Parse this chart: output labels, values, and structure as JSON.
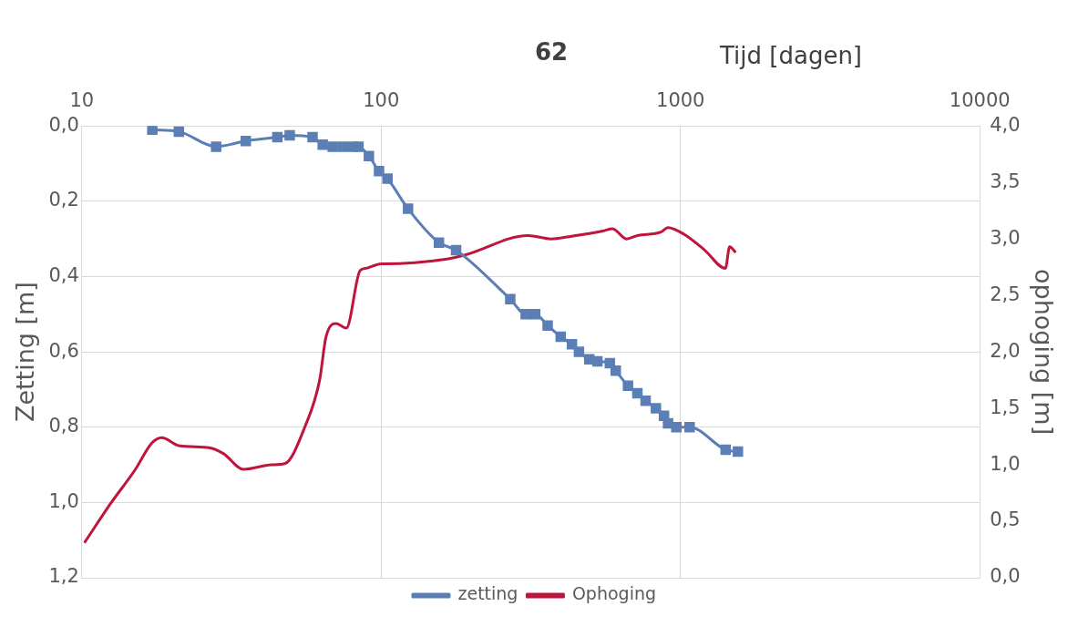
{
  "chart_data": {
    "type": "line",
    "title": "62",
    "xlabel": "Tijd [dagen]",
    "ylabel": "Zetting [m]",
    "y2label": "ophoging [m]",
    "log": "x",
    "xlim": [
      10,
      10000
    ],
    "xticks": [
      10,
      100,
      1000,
      10000
    ],
    "ylim": [
      1.2,
      0
    ],
    "yticks": [
      {
        "value": 0,
        "label": "0,0"
      },
      {
        "value": 0.2,
        "label": "0,2"
      },
      {
        "value": 0.4,
        "label": "0,4"
      },
      {
        "value": 0.6,
        "label": "0,6"
      },
      {
        "value": 0.8,
        "label": "0,8"
      },
      {
        "value": 1.0,
        "label": "1,0"
      },
      {
        "value": 1.2,
        "label": "1,2"
      }
    ],
    "y2lim": [
      0,
      4
    ],
    "y2ticks": [
      {
        "value": 0,
        "label": "0,0"
      },
      {
        "value": 0.5,
        "label": "0,5"
      },
      {
        "value": 1.0,
        "label": "1,0"
      },
      {
        "value": 1.5,
        "label": "1,5"
      },
      {
        "value": 2.0,
        "label": "2,0"
      },
      {
        "value": 2.5,
        "label": "2,5"
      },
      {
        "value": 3.0,
        "label": "3,0"
      },
      {
        "value": 3.5,
        "label": "3,5"
      },
      {
        "value": 4.0,
        "label": "4,0"
      }
    ],
    "grid": true,
    "legend": "bottom",
    "series": [
      {
        "name": "zetting",
        "color": "#5b7fb5",
        "marker": "square",
        "line_style": "solid",
        "x": [
          17.2,
          21.1,
          28.1,
          35.3,
          45,
          49.5,
          59,
          63.8,
          68.9,
          74.6,
          80.7,
          84,
          91,
          98.4,
          105,
          123,
          156,
          178,
          270,
          304,
          327,
          360,
          398,
          434,
          458,
          496,
          528,
          581,
          608,
          668,
          718,
          765,
          828,
          881,
          909,
          969,
          1073,
          1416,
          1556
        ],
        "values": [
          0.01,
          0.015,
          0.055,
          0.04,
          0.03,
          0.025,
          0.03,
          0.05,
          0.055,
          0.055,
          0.055,
          0.055,
          0.08,
          0.12,
          0.14,
          0.22,
          0.31,
          0.33,
          0.46,
          0.5,
          0.5,
          0.53,
          0.56,
          0.58,
          0.6,
          0.62,
          0.625,
          0.63,
          0.65,
          0.69,
          0.71,
          0.73,
          0.75,
          0.77,
          0.79,
          0.8,
          0.8,
          0.86,
          0.865
        ]
      },
      {
        "name": "Ophoging",
        "color": "#c0143c",
        "marker": "none",
        "line_style": "solid",
        "axis": "y2",
        "x": [
          10.2,
          12.5,
          15.1,
          17.1,
          18.5,
          21.1,
          26.8,
          29.7,
          34.7,
          43,
          47.6,
          55.7,
          62.3,
          65.4,
          70.7,
          76.5,
          85.1,
          89.2,
          100,
          102,
          164,
          192,
          309,
          370,
          424,
          550,
          593,
          660,
          718,
          860,
          908,
          1030,
          1206,
          1413,
          1460,
          1530
        ],
        "values": [
          0.31,
          0.66,
          0.96,
          1.19,
          1.24,
          1.17,
          1.15,
          1.1,
          0.96,
          1.0,
          1.01,
          1.34,
          1.75,
          2.13,
          2.25,
          2.21,
          2.72,
          2.74,
          2.78,
          2.78,
          2.82,
          2.86,
          3.03,
          3.0,
          3.02,
          3.07,
          3.09,
          3.0,
          3.03,
          3.06,
          3.1,
          3.04,
          2.9,
          2.74,
          2.93,
          2.88
        ]
      }
    ]
  }
}
